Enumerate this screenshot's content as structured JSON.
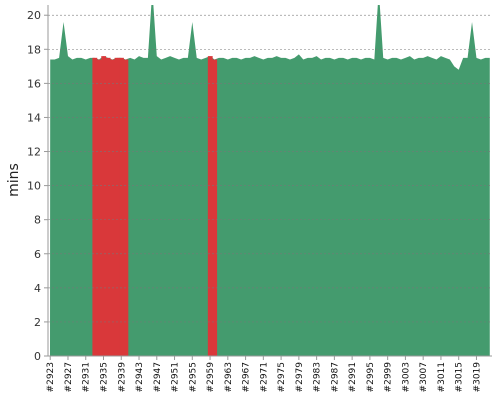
{
  "chart_data": {
    "type": "area",
    "ylabel": "mins",
    "ylim": [
      0,
      20.6
    ],
    "yticks": [
      0,
      2,
      4,
      6,
      8,
      10,
      12,
      14,
      16,
      18,
      20
    ],
    "grid": true,
    "x": [
      2923,
      2924,
      2925,
      2926,
      2927,
      2928,
      2929,
      2930,
      2931,
      2932,
      2933,
      2934,
      2935,
      2936,
      2937,
      2938,
      2939,
      2940,
      2941,
      2942,
      2943,
      2944,
      2945,
      2946,
      2947,
      2948,
      2949,
      2950,
      2951,
      2952,
      2953,
      2954,
      2955,
      2956,
      2957,
      2958,
      2959,
      2960,
      2961,
      2962,
      2963,
      2964,
      2965,
      2966,
      2967,
      2968,
      2969,
      2970,
      2971,
      2972,
      2973,
      2974,
      2975,
      2976,
      2977,
      2978,
      2979,
      2980,
      2981,
      2982,
      2983,
      2984,
      2985,
      2986,
      2987,
      2988,
      2989,
      2990,
      2991,
      2992,
      2993,
      2994,
      2995,
      2996,
      2997,
      2998,
      2999,
      3000,
      3001,
      3002,
      3003,
      3004,
      3005,
      3006,
      3007,
      3008,
      3009,
      3010,
      3011,
      3012,
      3013,
      3014,
      3015,
      3016,
      3017,
      3018,
      3019,
      3020,
      3021,
      3022
    ],
    "x_tick_labels": [
      "#2923",
      "#2927",
      "#2931",
      "#2935",
      "#2939",
      "#2943",
      "#2947",
      "#2951",
      "#2955",
      "#2959",
      "#2963",
      "#2967",
      "#2971",
      "#2975",
      "#2979",
      "#2983",
      "#2987",
      "#2991",
      "#2995",
      "#2999",
      "#3003",
      "#3007",
      "#3011",
      "#3015",
      "#3019"
    ],
    "values": [
      17.4,
      17.4,
      17.5,
      19.6,
      17.6,
      17.4,
      17.5,
      17.5,
      17.4,
      17.5,
      17.5,
      17.4,
      17.6,
      17.5,
      17.4,
      17.5,
      17.5,
      17.4,
      17.5,
      17.4,
      17.6,
      17.5,
      17.5,
      21.5,
      17.6,
      17.4,
      17.5,
      17.6,
      17.5,
      17.4,
      17.5,
      17.5,
      19.6,
      17.5,
      17.4,
      17.5,
      17.6,
      17.4,
      17.5,
      17.5,
      17.4,
      17.5,
      17.5,
      17.4,
      17.5,
      17.5,
      17.6,
      17.5,
      17.4,
      17.5,
      17.5,
      17.6,
      17.5,
      17.5,
      17.4,
      17.5,
      17.7,
      17.4,
      17.5,
      17.5,
      17.6,
      17.4,
      17.5,
      17.5,
      17.4,
      17.5,
      17.5,
      17.4,
      17.5,
      17.5,
      17.4,
      17.5,
      17.5,
      17.4,
      21.5,
      17.5,
      17.4,
      17.5,
      17.5,
      17.4,
      17.5,
      17.6,
      17.4,
      17.5,
      17.5,
      17.6,
      17.5,
      17.4,
      17.6,
      17.5,
      17.4,
      17.0,
      16.8,
      17.5,
      17.5,
      19.6,
      17.5,
      17.4,
      17.5,
      17.5
    ],
    "failed_builds": [
      2933,
      2934,
      2935,
      2936,
      2937,
      2938,
      2939,
      2940,
      2959,
      2960
    ],
    "colors": {
      "success": "#449b6e",
      "failed": "#d9383a",
      "grid": "#777777",
      "axis": "#999999"
    }
  }
}
